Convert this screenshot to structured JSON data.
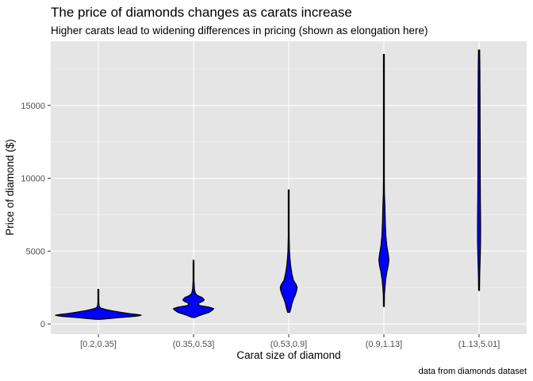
{
  "chart_data": {
    "type": "violin",
    "title": "The price of diamonds changes as carats increase",
    "subtitle": "Higher carats lead to widening differences in pricing (shown as elongation here)",
    "xlabel": "Carat size of diamond",
    "ylabel": "Price of diamond ($)",
    "caption": "data from diamonds dataset",
    "categories": [
      "[0.2,0.35]",
      "(0.35,0.53]",
      "(0.53,0.9]",
      "(0.9,1.13]",
      "(1.13,5.01]"
    ],
    "ylim": [
      -700,
      19400
    ],
    "yticks": [
      0,
      5000,
      10000,
      15000
    ],
    "grid": true,
    "fill_color": "#0000ff",
    "outline_color": "#000000",
    "panel_color": "#e5e5e5",
    "violins": [
      {
        "category": "[0.2,0.35]",
        "min": 326,
        "max": 2366,
        "profile": [
          [
            326,
            0.05
          ],
          [
            380,
            0.25
          ],
          [
            450,
            0.5
          ],
          [
            520,
            0.8
          ],
          [
            570,
            0.9
          ],
          [
            600,
            0.95
          ],
          [
            650,
            0.85
          ],
          [
            700,
            0.7
          ],
          [
            800,
            0.5
          ],
          [
            900,
            0.3
          ],
          [
            1000,
            0.15
          ],
          [
            1100,
            0.05
          ],
          [
            1200,
            0.02
          ],
          [
            1500,
            0.008
          ],
          [
            2366,
            0.004
          ]
        ]
      },
      {
        "category": "(0.35,0.53]",
        "min": 450,
        "max": 4368,
        "profile": [
          [
            450,
            0.03
          ],
          [
            600,
            0.15
          ],
          [
            800,
            0.35
          ],
          [
            950,
            0.42
          ],
          [
            1050,
            0.45
          ],
          [
            1150,
            0.35
          ],
          [
            1250,
            0.15
          ],
          [
            1350,
            0.1
          ],
          [
            1450,
            0.13
          ],
          [
            1550,
            0.2
          ],
          [
            1650,
            0.24
          ],
          [
            1800,
            0.2
          ],
          [
            1950,
            0.09
          ],
          [
            2100,
            0.04
          ],
          [
            2400,
            0.02
          ],
          [
            3000,
            0.008
          ],
          [
            4368,
            0.004
          ]
        ]
      },
      {
        "category": "(0.53,0.9]",
        "min": 800,
        "max": 9200,
        "profile": [
          [
            800,
            0.02
          ],
          [
            1100,
            0.05
          ],
          [
            1400,
            0.07
          ],
          [
            1700,
            0.1
          ],
          [
            2000,
            0.14
          ],
          [
            2300,
            0.17
          ],
          [
            2500,
            0.18
          ],
          [
            2700,
            0.16
          ],
          [
            3000,
            0.1
          ],
          [
            3400,
            0.07
          ],
          [
            4000,
            0.04
          ],
          [
            4500,
            0.025
          ],
          [
            5000,
            0.015
          ],
          [
            6000,
            0.008
          ],
          [
            7500,
            0.005
          ],
          [
            9200,
            0.003
          ]
        ]
      },
      {
        "category": "(0.9,1.13]",
        "min": 1200,
        "max": 18500,
        "profile": [
          [
            1200,
            0.005
          ],
          [
            2000,
            0.015
          ],
          [
            3000,
            0.05
          ],
          [
            3600,
            0.09
          ],
          [
            4000,
            0.13
          ],
          [
            4400,
            0.15
          ],
          [
            4800,
            0.13
          ],
          [
            5300,
            0.09
          ],
          [
            6000,
            0.06
          ],
          [
            7000,
            0.04
          ],
          [
            8000,
            0.03
          ],
          [
            9000,
            0.015
          ],
          [
            10000,
            0.01
          ],
          [
            12000,
            0.008
          ],
          [
            14000,
            0.006
          ],
          [
            16000,
            0.004
          ],
          [
            18500,
            0.003
          ]
        ]
      },
      {
        "category": "(1.13,5.01]",
        "min": 2300,
        "max": 18800,
        "profile": [
          [
            2300,
            0.004
          ],
          [
            3500,
            0.012
          ],
          [
            4500,
            0.02
          ],
          [
            5500,
            0.026
          ],
          [
            6500,
            0.028
          ],
          [
            7500,
            0.026
          ],
          [
            8500,
            0.024
          ],
          [
            9500,
            0.022
          ],
          [
            10500,
            0.021
          ],
          [
            11500,
            0.021
          ],
          [
            12500,
            0.02
          ],
          [
            13500,
            0.019
          ],
          [
            14500,
            0.018
          ],
          [
            15500,
            0.017
          ],
          [
            16500,
            0.016
          ],
          [
            17500,
            0.014
          ],
          [
            18800,
            0.01
          ]
        ]
      }
    ]
  }
}
